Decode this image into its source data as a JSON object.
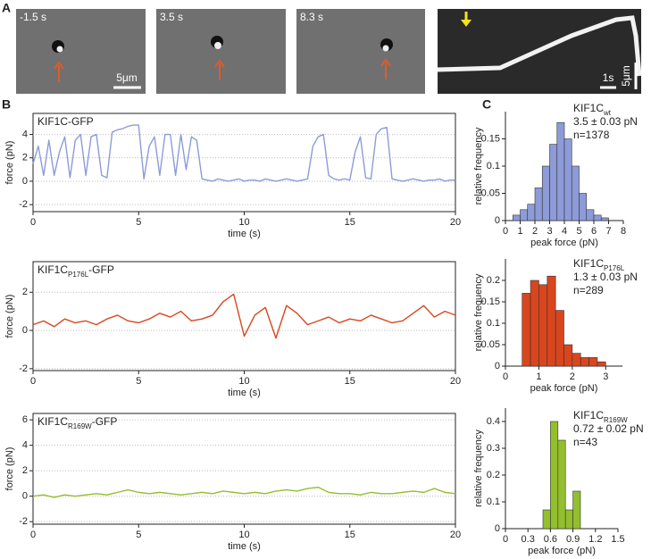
{
  "panel_labels": [
    "A",
    "B",
    "C"
  ],
  "micrographs": [
    {
      "time": "-1.5 s",
      "scale_bar": "5μm"
    },
    {
      "time": "3.5 s"
    },
    {
      "time": "8.3 s"
    }
  ],
  "kymograph": {
    "time_bar": "1s",
    "scale_bar": "5μm"
  },
  "chart_data": [
    {
      "type": "line",
      "label_parts": [
        "KIF1C-GFP"
      ],
      "xlabel": "time (s)",
      "ylabel": "force (pN)",
      "color": "#8d9bd8",
      "grid": true,
      "xlim": [
        0,
        20
      ],
      "xticks": [
        0,
        5,
        10,
        15,
        20
      ],
      "ylim": [
        -2.6,
        5.8
      ],
      "yticks": [
        -2,
        0,
        2,
        4
      ],
      "x": [
        0,
        0.25,
        0.5,
        0.75,
        1,
        1.25,
        1.5,
        1.75,
        2,
        2.25,
        2.5,
        2.75,
        3,
        3.25,
        3.5,
        3.75,
        4,
        4.25,
        4.5,
        4.75,
        5,
        5.25,
        5.5,
        5.75,
        6,
        6.25,
        6.5,
        6.75,
        7,
        7.25,
        7.5,
        7.75,
        8,
        8.25,
        8.5,
        8.75,
        9,
        9.25,
        9.5,
        9.75,
        10,
        10.25,
        10.5,
        10.75,
        11,
        11.25,
        11.5,
        11.75,
        12,
        12.25,
        12.5,
        12.75,
        13,
        13.25,
        13.5,
        13.75,
        14,
        14.25,
        14.5,
        14.75,
        15,
        15.25,
        15.5,
        15.75,
        16,
        16.25,
        16.5,
        16.75,
        17,
        17.25,
        17.5,
        17.75,
        18,
        18.25,
        18.5,
        18.75,
        19,
        19.25,
        19.5,
        19.75,
        20
      ],
      "values": [
        1.5,
        3.0,
        0.5,
        3.5,
        0.5,
        2.5,
        3.8,
        0.3,
        3.5,
        4.0,
        0.5,
        3.8,
        4.0,
        0.5,
        0.3,
        4.2,
        4.4,
        4.5,
        4.7,
        4.8,
        4.8,
        0.2,
        3.0,
        3.8,
        0.5,
        4.0,
        4.0,
        0.5,
        4.0,
        1.0,
        3.8,
        3.5,
        0.2,
        0.1,
        0.0,
        0.2,
        0.1,
        0.0,
        0.1,
        0.2,
        0.0,
        0.1,
        0.1,
        0.0,
        0.2,
        0.1,
        0.0,
        0.1,
        0.2,
        0.1,
        0.0,
        0.1,
        0.2,
        3.0,
        3.8,
        4.0,
        0.5,
        0.2,
        0.1,
        0.2,
        0.1,
        2.5,
        3.8,
        0.3,
        0.2,
        4.0,
        4.5,
        4.6,
        0.2,
        0.1,
        0.0,
        0.1,
        0.2,
        0.1,
        0.0,
        0.1,
        0.1,
        0.2,
        0.0,
        0.1,
        0.1
      ]
    },
    {
      "type": "histogram",
      "label_parts": [
        "KIF1C",
        "wt"
      ],
      "annotations": [
        "3.5 ± 0.03 pN",
        "n=1378"
      ],
      "xlabel": "peak force (pN)",
      "ylabel": "relative frequency",
      "color": "#8d9bd8",
      "xlim": [
        0,
        8
      ],
      "xticks": [
        0,
        1,
        2,
        3,
        4,
        5,
        6,
        7,
        8
      ],
      "ylim": [
        0,
        0.2
      ],
      "yticks": [
        0,
        0.05,
        0.1,
        0.15
      ],
      "bins": [
        0,
        0.5,
        1,
        1.5,
        2,
        2.5,
        3,
        3.5,
        4,
        4.5,
        5,
        5.5,
        6,
        6.5,
        7,
        7.5,
        8
      ],
      "values": [
        0,
        0.01,
        0.02,
        0.03,
        0.06,
        0.1,
        0.14,
        0.18,
        0.15,
        0.1,
        0.05,
        0.02,
        0.01,
        0.005,
        0,
        0
      ]
    },
    {
      "type": "line",
      "label_parts": [
        "KIF1C",
        "P176L",
        "-GFP"
      ],
      "xlabel": "time (s)",
      "ylabel": "force (pN)",
      "color": "#d9461e",
      "grid": true,
      "xlim": [
        0,
        20
      ],
      "xticks": [
        0,
        5,
        10,
        15,
        20
      ],
      "ylim": [
        -2.1,
        3.6
      ],
      "yticks": [
        -2,
        0,
        2
      ],
      "x": [
        0,
        0.5,
        1,
        1.5,
        2,
        2.5,
        3,
        3.5,
        4,
        4.5,
        5,
        5.5,
        6,
        6.5,
        7,
        7.5,
        8,
        8.5,
        9,
        9.5,
        10,
        10.5,
        11,
        11.5,
        12,
        12.5,
        13,
        13.5,
        14,
        14.5,
        15,
        15.5,
        16,
        16.5,
        17,
        17.5,
        18,
        18.5,
        19,
        19.5,
        20
      ],
      "values": [
        0.3,
        0.5,
        0.2,
        0.6,
        0.4,
        0.5,
        0.3,
        0.6,
        0.8,
        0.5,
        0.4,
        0.6,
        0.9,
        0.7,
        1.0,
        0.5,
        0.6,
        0.8,
        1.5,
        1.9,
        -0.3,
        0.8,
        1.2,
        -0.4,
        1.3,
        0.9,
        0.3,
        0.5,
        0.7,
        0.4,
        0.6,
        0.5,
        0.8,
        0.6,
        0.4,
        0.5,
        0.9,
        1.3,
        0.7,
        1.0,
        0.8
      ]
    },
    {
      "type": "histogram",
      "label_parts": [
        "KIF1C",
        "P176L"
      ],
      "annotations": [
        "1.3 ± 0.03 pN",
        "n=289"
      ],
      "xlabel": "peak force (pN)",
      "ylabel": "relative frequency",
      "color": "#d9461e",
      "xlim": [
        0,
        3.5
      ],
      "xticks": [
        0,
        1,
        2,
        3
      ],
      "ylim": [
        0,
        0.25
      ],
      "yticks": [
        0,
        0.05,
        0.1,
        0.15,
        0.2
      ],
      "bins": [
        0.5,
        0.75,
        1,
        1.25,
        1.5,
        1.75,
        2,
        2.25,
        2.5,
        2.75,
        3
      ],
      "values": [
        0.17,
        0.2,
        0.19,
        0.21,
        0.13,
        0.05,
        0.03,
        0.02,
        0.02,
        0.01
      ]
    },
    {
      "type": "line",
      "label_parts": [
        "KIF1C",
        "R169W",
        "-GFP"
      ],
      "xlabel": "time (s)",
      "ylabel": "force (pN)",
      "color": "#93bf2e",
      "grid": true,
      "xlim": [
        0,
        20
      ],
      "xticks": [
        0,
        5,
        10,
        15,
        20
      ],
      "ylim": [
        -2.2,
        6.5
      ],
      "yticks": [
        -2,
        0,
        2,
        4,
        6
      ],
      "x": [
        0,
        0.5,
        1,
        1.5,
        2,
        2.5,
        3,
        3.5,
        4,
        4.5,
        5,
        5.5,
        6,
        6.5,
        7,
        7.5,
        8,
        8.5,
        9,
        9.5,
        10,
        10.5,
        11,
        11.5,
        12,
        12.5,
        13,
        13.5,
        14,
        14.5,
        15,
        15.5,
        16,
        16.5,
        17,
        17.5,
        18,
        18.5,
        19,
        19.5,
        20
      ],
      "values": [
        0.0,
        0.1,
        -0.1,
        0.1,
        0.0,
        0.1,
        0.2,
        0.1,
        0.3,
        0.5,
        0.3,
        0.2,
        0.3,
        0.2,
        0.1,
        0.2,
        0.3,
        0.2,
        0.4,
        0.3,
        0.2,
        0.3,
        0.2,
        0.4,
        0.5,
        0.4,
        0.6,
        0.7,
        0.3,
        0.2,
        0.2,
        0.1,
        0.3,
        0.2,
        0.2,
        0.3,
        0.4,
        0.3,
        0.6,
        0.3,
        0.2
      ]
    },
    {
      "type": "histogram",
      "label_parts": [
        "KIF1C",
        "R169W"
      ],
      "annotations": [
        "0.72 ± 0.02 pN",
        "n=43"
      ],
      "xlabel": "peak force (pN)",
      "ylabel": "relative frequency",
      "color": "#93bf2e",
      "xlim": [
        0,
        1.5
      ],
      "xticks": [
        0,
        0.3,
        0.6,
        0.9,
        1.2,
        1.5
      ],
      "ylim": [
        0,
        0.45
      ],
      "yticks": [
        0,
        0.1,
        0.2,
        0.3,
        0.4
      ],
      "bins": [
        0.5,
        0.6,
        0.7,
        0.8,
        0.9,
        1.0
      ],
      "values": [
        0.07,
        0.4,
        0.33,
        0.07,
        0.14
      ]
    }
  ]
}
